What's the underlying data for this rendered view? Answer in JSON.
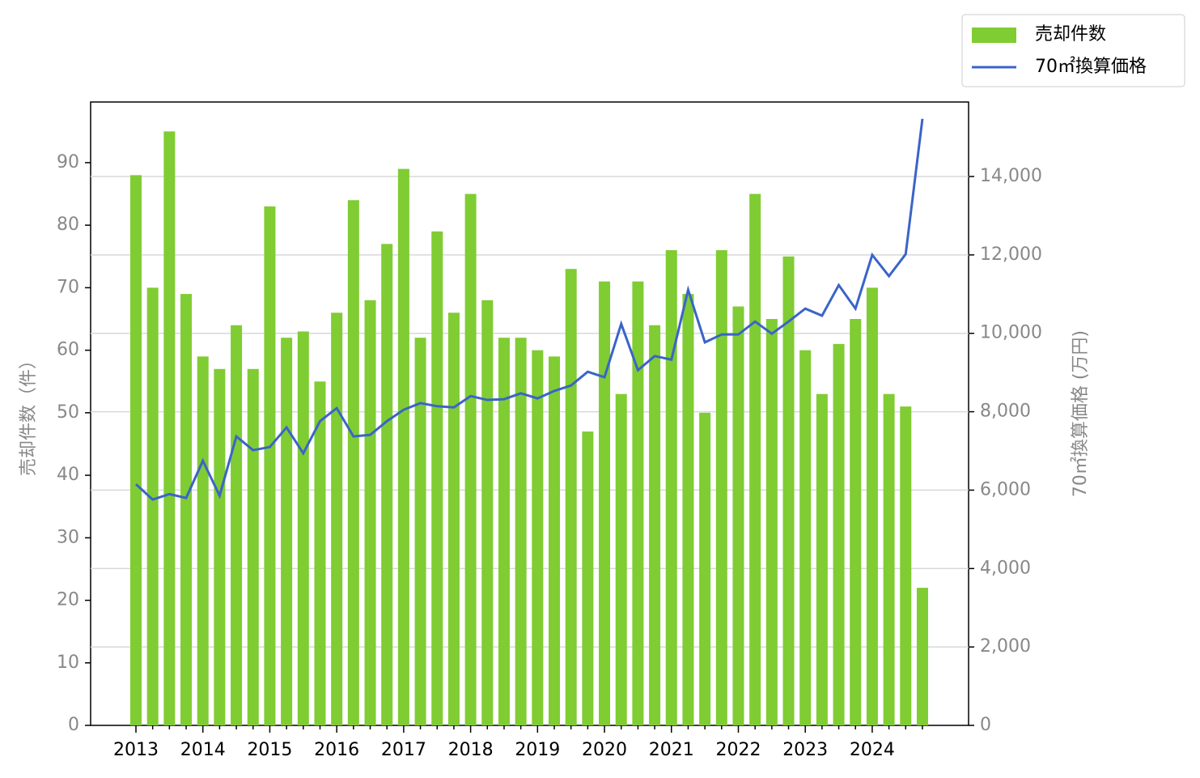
{
  "chart_data": {
    "type": "bar_line",
    "categories": [
      "2013",
      null,
      null,
      null,
      "2014",
      null,
      null,
      null,
      "2015",
      null,
      null,
      null,
      "2016",
      null,
      null,
      null,
      "2017",
      null,
      null,
      null,
      "2018",
      null,
      null,
      null,
      "2019",
      null,
      null,
      null,
      "2020",
      null,
      null,
      null,
      "2021",
      null,
      null,
      null,
      "2022",
      null,
      null,
      null,
      "2023",
      null,
      null,
      null,
      "2024",
      null,
      null,
      null
    ],
    "series": [
      {
        "name": "売却件数",
        "type": "bar",
        "color": "#80cc33",
        "values": [
          88,
          70,
          95,
          69,
          59,
          57,
          64,
          57,
          83,
          62,
          63,
          55,
          66,
          84,
          68,
          77,
          89,
          62,
          79,
          66,
          85,
          68,
          62,
          62,
          60,
          59,
          73,
          47,
          71,
          53,
          71,
          64,
          76,
          69,
          50,
          76,
          67,
          85,
          65,
          75,
          60,
          53,
          61,
          65,
          70,
          53,
          51,
          22
        ]
      },
      {
        "name": "70㎡換算価格",
        "type": "line",
        "axis": "y2",
        "color": "#3a64c8",
        "values": [
          6150,
          5760,
          5900,
          5800,
          6750,
          5860,
          7370,
          7020,
          7100,
          7600,
          6940,
          7760,
          8090,
          7370,
          7410,
          7760,
          8050,
          8220,
          8140,
          8110,
          8400,
          8300,
          8320,
          8470,
          8340,
          8530,
          8670,
          9020,
          8880,
          10240,
          9060,
          9420,
          9330,
          11110,
          9770,
          9970,
          9970,
          10300,
          9990,
          10300,
          10630,
          10450,
          11230,
          10630,
          12000,
          11460,
          12020,
          15470
        ]
      }
    ],
    "ylabel": "売却件数（件）",
    "y2label": "70㎡換算価格 (万円)",
    "ylim": [
      0,
      99.7
    ],
    "yticks": [
      0,
      10,
      20,
      30,
      40,
      50,
      60,
      70,
      80,
      90
    ],
    "y2lim": [
      0,
      15900
    ],
    "y2ticks": [
      0,
      {
        "value": 2000,
        "label": "2,000"
      },
      {
        "value": 4000,
        "label": "4,000"
      },
      {
        "value": 6000,
        "label": "6,000"
      },
      {
        "value": 8000,
        "label": "8,000"
      },
      {
        "value": 10000,
        "label": "10,000"
      },
      {
        "value": 12000,
        "label": "12,000"
      },
      {
        "value": 14000,
        "label": "14,000"
      }
    ],
    "grid": "y2",
    "legend": "upper right"
  }
}
